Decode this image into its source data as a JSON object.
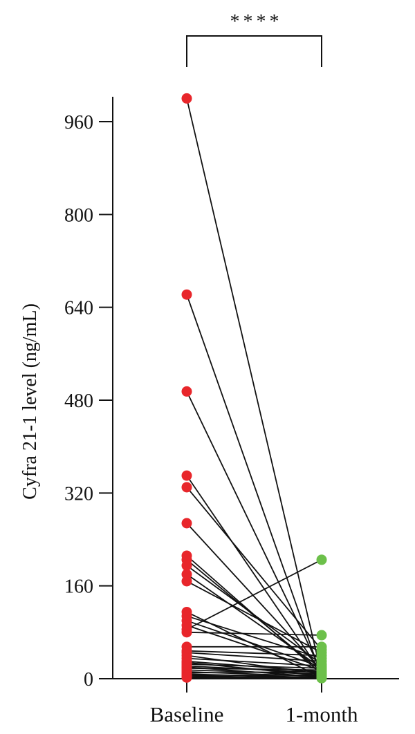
{
  "chart_data": {
    "type": "scatter",
    "subtype": "paired-dot-plot",
    "title": "",
    "ylabel": "Cyfra 21-1 level (ng/mL)",
    "xlabel": "",
    "categories": [
      "Baseline",
      "1-month"
    ],
    "ylim": [
      0,
      1000
    ],
    "yticks": [
      0,
      160,
      320,
      480,
      640,
      800,
      960
    ],
    "grid": false,
    "legend": "none",
    "significance": {
      "label": "****",
      "between": [
        "Baseline",
        "1-month"
      ]
    },
    "colors": {
      "Baseline": "#e8262b",
      "1-month": "#6cc04a",
      "lines": "#111111"
    },
    "pairs": [
      {
        "baseline": 1000,
        "month1": 6
      },
      {
        "baseline": 662,
        "month1": 4
      },
      {
        "baseline": 495,
        "month1": 12
      },
      {
        "baseline": 350,
        "month1": 10
      },
      {
        "baseline": 330,
        "month1": 50
      },
      {
        "baseline": 268,
        "month1": 15
      },
      {
        "baseline": 212,
        "month1": 8
      },
      {
        "baseline": 205,
        "month1": 12
      },
      {
        "baseline": 195,
        "month1": 25
      },
      {
        "baseline": 180,
        "month1": 18
      },
      {
        "baseline": 168,
        "month1": 45
      },
      {
        "baseline": 115,
        "month1": 2
      },
      {
        "baseline": 108,
        "month1": 35
      },
      {
        "baseline": 100,
        "month1": 20
      },
      {
        "baseline": 92,
        "month1": 14
      },
      {
        "baseline": 85,
        "month1": 205
      },
      {
        "baseline": 80,
        "month1": 75
      },
      {
        "baseline": 55,
        "month1": 55
      },
      {
        "baseline": 48,
        "month1": 40
      },
      {
        "baseline": 45,
        "month1": 30
      },
      {
        "baseline": 40,
        "month1": 8
      },
      {
        "baseline": 35,
        "month1": 22
      },
      {
        "baseline": 30,
        "month1": 12
      },
      {
        "baseline": 28,
        "month1": 5
      },
      {
        "baseline": 25,
        "month1": 18
      },
      {
        "baseline": 22,
        "month1": 10
      },
      {
        "baseline": 20,
        "month1": 3
      },
      {
        "baseline": 18,
        "month1": 15
      },
      {
        "baseline": 15,
        "month1": 8
      },
      {
        "baseline": 12,
        "month1": 4
      },
      {
        "baseline": 10,
        "month1": 12
      },
      {
        "baseline": 8,
        "month1": 2
      },
      {
        "baseline": 6,
        "month1": 6
      },
      {
        "baseline": 5,
        "month1": 1
      },
      {
        "baseline": 3,
        "month1": 3
      },
      {
        "baseline": 2,
        "month1": 1
      }
    ]
  }
}
